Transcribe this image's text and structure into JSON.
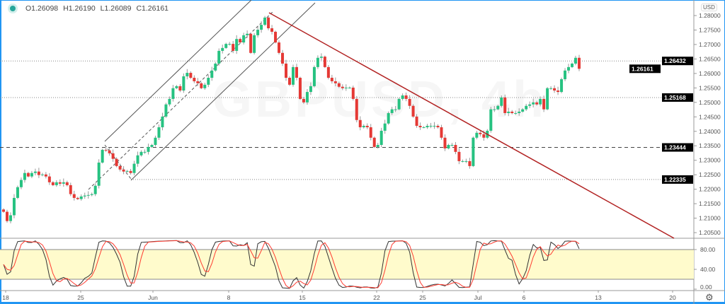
{
  "legend": {
    "open": "O1.26098",
    "high": "H1.26190",
    "low": "L1.26089",
    "close": "C1.26161"
  },
  "currency": "USD",
  "watermark": "GBPUSD, 4h",
  "colors": {
    "up": "#26c281",
    "down": "#e53935",
    "trendline": "#b22222",
    "band": "#fffbcc",
    "stoch_k": "#333333",
    "stoch_d": "#ff3b30",
    "frame": "#2196f3"
  },
  "chart_data": {
    "type": "candlestick",
    "ylim": [
      1.204,
      1.285
    ],
    "price_ticks": [
      "1.28000",
      "1.27500",
      "1.27000",
      "1.26500",
      "1.26000",
      "1.25500",
      "1.25000",
      "1.24500",
      "1.24000",
      "1.23500",
      "1.23000",
      "1.22500",
      "1.22000",
      "1.21500",
      "1.21000",
      "1.20500"
    ],
    "price_labels": [
      {
        "text": "1.26432",
        "value": 1.26432,
        "style": "dotted"
      },
      {
        "text": "1.26161",
        "value": 1.26161,
        "style": "none"
      },
      {
        "text": "1.25168",
        "value": 1.25168,
        "style": "dotted"
      },
      {
        "text": "1.23444",
        "value": 1.23444,
        "style": "dashed"
      },
      {
        "text": "1.22335",
        "value": 1.22335,
        "style": "dotted"
      }
    ],
    "date_ticks": [
      "18",
      "25",
      "Jun",
      "8",
      "15",
      "22",
      "25",
      "Jul",
      "6",
      "13",
      "20"
    ],
    "closes": [
      1.2122,
      1.209,
      1.211,
      1.217,
      1.2207,
      1.2232,
      1.2256,
      1.2244,
      1.2256,
      1.2261,
      1.2249,
      1.2251,
      1.2244,
      1.2224,
      1.2214,
      1.2224,
      1.2219,
      1.2224,
      1.2214,
      1.2183,
      1.217,
      1.2166,
      1.2175,
      1.2178,
      1.218,
      1.2183,
      1.2212,
      1.2292,
      1.2336,
      1.2334,
      1.2324,
      1.2305,
      1.228,
      1.2268,
      1.2261,
      1.2263,
      1.2256,
      1.2288,
      1.2317,
      1.2329,
      1.2329,
      1.2346,
      1.2353,
      1.2378,
      1.2414,
      1.2451,
      1.2493,
      1.2512,
      1.2549,
      1.2556,
      1.2541,
      1.259,
      1.2602,
      1.2585,
      1.2573,
      1.2566,
      1.2549,
      1.2561,
      1.2585,
      1.261,
      1.2634,
      1.2678,
      1.2688,
      1.2702,
      1.2702,
      1.2678,
      1.2719,
      1.2707,
      1.2732,
      1.2737,
      1.2671,
      1.2732,
      1.2751,
      1.2768,
      1.2793,
      1.2756,
      1.2744,
      1.2707,
      1.2671,
      1.2634,
      1.2585,
      1.2561,
      1.2622,
      1.2585,
      1.2512,
      1.25,
      1.2536,
      1.2556,
      1.2622,
      1.2654,
      1.2658,
      1.2622,
      1.2585,
      1.2573,
      1.2566,
      1.2554,
      1.2549,
      1.2551,
      1.2551,
      1.2512,
      1.2439,
      1.2414,
      1.2419,
      1.2414,
      1.2378,
      1.2346,
      1.2353,
      1.2402,
      1.2427,
      1.2463,
      1.2476,
      1.2476,
      1.2512,
      1.2524,
      1.2512,
      1.2488,
      1.2451,
      1.2419,
      1.2414,
      1.2414,
      1.2419,
      1.2419,
      1.2419,
      1.2414,
      1.2378,
      1.2341,
      1.2353,
      1.2353,
      1.2329,
      1.2297,
      1.2297,
      1.2297,
      1.228,
      1.2378,
      1.2395,
      1.239,
      1.2378,
      1.2402,
      1.2476,
      1.2476,
      1.2488,
      1.2517,
      1.2463,
      1.2468,
      1.2463,
      1.2463,
      1.2468,
      1.2476,
      1.2488,
      1.2493,
      1.25,
      1.2493,
      1.2512,
      1.2476,
      1.2549,
      1.2549,
      1.2541,
      1.2536,
      1.258,
      1.261,
      1.2622,
      1.2634,
      1.2654,
      1.26161
    ],
    "oscillator": {
      "ticks": [
        "80.00",
        "40.00",
        "0.00"
      ],
      "ylim": [
        0,
        100
      ],
      "band": [
        20,
        80
      ]
    }
  }
}
